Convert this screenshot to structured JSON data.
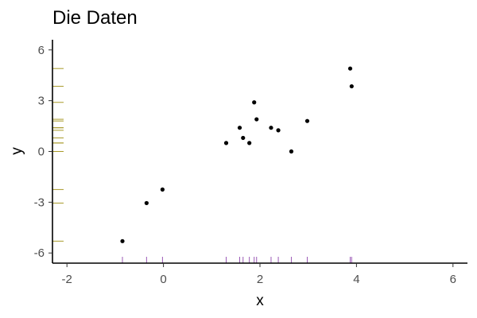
{
  "chart_data": {
    "type": "scatter",
    "title": "Die Daten",
    "xlabel": "x",
    "ylabel": "y",
    "xlim": [
      -2.3,
      6.3
    ],
    "ylim": [
      -6.6,
      6.6
    ],
    "x_ticks": [
      -2,
      0,
      2,
      4,
      6
    ],
    "x_tick_labels": [
      "-2",
      "0",
      "2",
      "4",
      "6"
    ],
    "y_ticks": [
      -6,
      -3,
      0,
      3,
      6
    ],
    "y_tick_labels": [
      "-6",
      "-3",
      "0",
      "3",
      "6"
    ],
    "grid": false,
    "legend": "none",
    "rug": {
      "x_color": "#9b59b6",
      "y_color": "#a89a2a"
    },
    "point_color": "#000000",
    "points": [
      {
        "x": -0.85,
        "y": -5.3
      },
      {
        "x": -0.35,
        "y": -3.05
      },
      {
        "x": -0.02,
        "y": -2.25
      },
      {
        "x": 1.3,
        "y": 0.5
      },
      {
        "x": 1.58,
        "y": 1.4
      },
      {
        "x": 1.65,
        "y": 0.8
      },
      {
        "x": 1.78,
        "y": 0.5
      },
      {
        "x": 1.88,
        "y": 2.9
      },
      {
        "x": 1.93,
        "y": 1.9
      },
      {
        "x": 2.23,
        "y": 1.4
      },
      {
        "x": 2.38,
        "y": 1.25
      },
      {
        "x": 2.65,
        "y": 0.0
      },
      {
        "x": 2.98,
        "y": 1.8
      },
      {
        "x": 3.87,
        "y": 4.9
      },
      {
        "x": 3.9,
        "y": 3.85
      }
    ]
  }
}
